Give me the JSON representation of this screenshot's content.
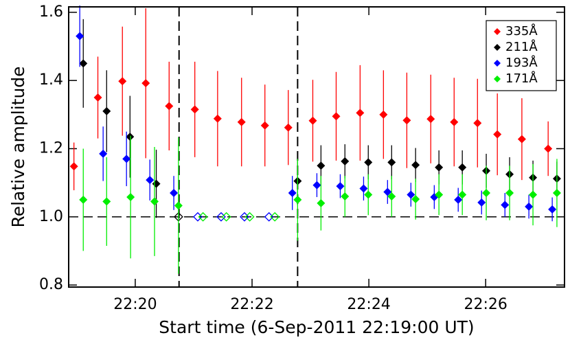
{
  "chart_data": {
    "type": "errorbar-scatter",
    "y_label": "Relative amplitude",
    "x_label": "Start time (6-Sep-2011 22:19:00 UT)",
    "xlim": [
      -0.14,
      8.35
    ],
    "ylim": [
      0.794,
      1.616
    ],
    "xticks": [
      {
        "value": 1,
        "label": "22:20"
      },
      {
        "value": 3,
        "label": "22:22"
      },
      {
        "value": 5,
        "label": "22:24"
      },
      {
        "value": 7,
        "label": "22:26"
      }
    ],
    "yticks": [
      0.8,
      {
        "value": 1,
        "label": "1.0"
      },
      1.2,
      1.4,
      1.6
    ],
    "vlines": [
      1.75,
      3.78
    ],
    "hline": 1,
    "legend": "top-right",
    "series": [
      {
        "name": "335Å",
        "color": "#ff0000",
        "x": [
          -0.05,
          0.36,
          0.78,
          1.18,
          1.58,
          2.02,
          2.41,
          2.82,
          3.22,
          3.62,
          4.04,
          4.44,
          4.85,
          5.25,
          5.65,
          6.06,
          6.46,
          6.86,
          7.2,
          7.62,
          8.07
        ],
        "values": [
          1.148,
          1.35,
          1.398,
          1.392,
          1.325,
          1.315,
          1.288,
          1.278,
          1.268,
          1.262,
          1.282,
          1.295,
          1.305,
          1.3,
          1.283,
          1.287,
          1.278,
          1.275,
          1.242,
          1.228,
          1.2
        ],
        "errors": [
          0.07,
          0.12,
          0.16,
          0.22,
          0.13,
          0.14,
          0.14,
          0.13,
          0.12,
          0.11,
          0.12,
          0.13,
          0.14,
          0.13,
          0.14,
          0.13,
          0.13,
          0.13,
          0.12,
          0.12,
          0.08
        ],
        "open_markers": [
          false,
          false,
          false,
          false,
          false,
          false,
          false,
          false,
          false,
          false,
          false,
          false,
          false,
          false,
          false,
          false,
          false,
          false,
          false,
          false,
          false
        ]
      },
      {
        "name": "211Å",
        "color": "#000000",
        "x": [
          0.11,
          0.51,
          0.91,
          1.36,
          1.74,
          3.78,
          4.18,
          4.59,
          4.99,
          5.39,
          5.8,
          6.2,
          6.6,
          7.01,
          7.41,
          7.81,
          8.22
        ],
        "values": [
          1.45,
          1.31,
          1.235,
          1.097,
          1,
          1.105,
          1.15,
          1.163,
          1.16,
          1.16,
          1.152,
          1.145,
          1.145,
          1.135,
          1.125,
          1.115,
          1.112
        ],
        "errors": [
          0.13,
          0.12,
          0.12,
          0.1,
          null,
          0.07,
          0.06,
          0.05,
          0.05,
          0.05,
          0.05,
          0.05,
          0.05,
          0.05,
          0.05,
          0.05,
          0.05
        ],
        "open_markers": [
          false,
          false,
          false,
          false,
          true,
          false,
          false,
          false,
          false,
          false,
          false,
          false,
          false,
          false,
          false,
          false,
          false
        ]
      },
      {
        "name": "193Å",
        "color": "#0000ff",
        "x": [
          0.05,
          0.45,
          0.85,
          1.25,
          1.66,
          2.07,
          2.47,
          2.87,
          3.29,
          3.69,
          4.11,
          4.51,
          4.91,
          5.32,
          5.72,
          6.12,
          6.53,
          6.93,
          7.33,
          7.74,
          8.14
        ],
        "values": [
          1.53,
          1.185,
          1.17,
          1.108,
          1.07,
          1,
          1,
          1,
          1,
          1.07,
          1.093,
          1.09,
          1.083,
          1.073,
          1.065,
          1.058,
          1.05,
          1.042,
          1.035,
          1.03,
          1.022
        ],
        "errors": [
          0.09,
          0.08,
          0.08,
          0.06,
          0.05,
          null,
          null,
          null,
          null,
          0.05,
          0.035,
          0.035,
          0.035,
          0.035,
          0.035,
          0.035,
          0.035,
          0.035,
          0.035,
          0.035,
          0.035
        ],
        "open_markers": [
          false,
          false,
          false,
          false,
          false,
          true,
          true,
          true,
          true,
          false,
          false,
          false,
          false,
          false,
          false,
          false,
          false,
          false,
          false,
          false,
          false
        ]
      },
      {
        "name": "171Å",
        "color": "#00ee00",
        "x": [
          0.11,
          0.51,
          0.92,
          1.33,
          1.74,
          2.16,
          2.56,
          2.96,
          3.39,
          3.78,
          4.18,
          4.59,
          4.99,
          5.39,
          5.8,
          6.2,
          6.6,
          7.01,
          7.41,
          7.81,
          8.22
        ],
        "values": [
          1.05,
          1.045,
          1.058,
          1.045,
          1.033,
          1,
          1,
          1,
          1,
          1.05,
          1.04,
          1.06,
          1.065,
          1.06,
          1.052,
          1.065,
          1.065,
          1.07,
          1.07,
          1.065,
          1.07
        ],
        "errors": [
          0.15,
          0.13,
          0.18,
          0.16,
          0.2,
          null,
          null,
          null,
          null,
          0.12,
          0.08,
          0.06,
          0.06,
          0.06,
          0.06,
          0.06,
          0.06,
          0.08,
          0.08,
          0.09,
          0.1
        ],
        "open_markers": [
          false,
          false,
          false,
          false,
          false,
          true,
          true,
          true,
          true,
          false,
          false,
          false,
          false,
          false,
          false,
          false,
          false,
          false,
          false,
          false,
          false
        ]
      }
    ]
  }
}
